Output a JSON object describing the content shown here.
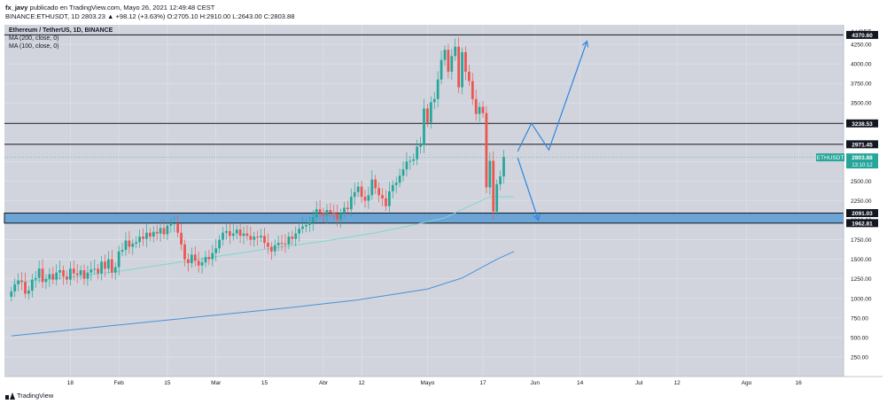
{
  "header": {
    "author": "fx_javy",
    "published_text": "publicado en TradingView.com, Mayo 26, 2021 12:49:48 CEST",
    "ticker_line": "BINANCE:ETHUSDT, 1D 2803.23 ▲ +98.12 (+3.63%) O:2705.10 H:2910.00 L:2643.00 C:2803.88"
  },
  "legend": {
    "title": "Ethereum / TetherUS, 1D, BINANCE",
    "ma1": "MA (200, close, 0)",
    "ma2": "MA (100, close, 0)"
  },
  "footer": {
    "brand": "TradingView"
  },
  "colors": {
    "background": "#d1d4dc",
    "up": "#26a69a",
    "down": "#ef5350",
    "ma200": "#4a90d9",
    "ma100": "#7fd6cf",
    "zone": "#5b9bd5",
    "projection": "#2f86e0",
    "price_tag": "#26a69a"
  },
  "chart_data": {
    "type": "candlestick",
    "ylim": [
      0,
      4500
    ],
    "y_ticks": [
      250,
      500,
      750,
      1000,
      1250,
      1500,
      1750,
      2000,
      2250,
      2500,
      2750,
      3000,
      3250,
      3500,
      3750,
      4000,
      4250
    ],
    "y_tick_labels": [
      "250.00",
      "500.00",
      "750.00",
      "1000.00",
      "1250.00",
      "1500.00",
      "1750.00",
      "2000.00",
      "2250.00",
      "2500.00",
      "2750.00",
      "3000.00",
      "3250.00",
      "3500.00",
      "3750.00",
      "4000.00",
      "4250.00"
    ],
    "y_unit_label": "USDT",
    "y_unit_value": 4,
    "x_labels": [
      {
        "label": "18",
        "day": 17
      },
      {
        "label": "Feb",
        "day": 31
      },
      {
        "label": "15",
        "day": 45
      },
      {
        "label": "Mar",
        "day": 59
      },
      {
        "label": "15",
        "day": 73
      },
      {
        "label": "Abr",
        "day": 90
      },
      {
        "label": "12",
        "day": 101
      },
      {
        "label": "Mayo",
        "day": 120
      },
      {
        "label": "17",
        "day": 136
      },
      {
        "label": "Jun",
        "day": 151
      },
      {
        "label": "14",
        "day": 164
      },
      {
        "label": "Jul",
        "day": 181
      },
      {
        "label": "12",
        "day": 192
      },
      {
        "label": "Ago",
        "day": 212
      },
      {
        "label": "16",
        "day": 227
      }
    ],
    "candles_close": [
      1090,
      1180,
      1230,
      1210,
      1060,
      1100,
      1240,
      1260,
      1380,
      1210,
      1250,
      1310,
      1240,
      1330,
      1360,
      1280,
      1240,
      1380,
      1320,
      1300,
      1360,
      1250,
      1330,
      1370,
      1380,
      1320,
      1470,
      1380,
      1500,
      1330,
      1400,
      1600,
      1620,
      1740,
      1660,
      1700,
      1720,
      1790,
      1760,
      1840,
      1790,
      1850,
      1830,
      1900,
      1820,
      1930,
      1950,
      1960,
      1840,
      1690,
      1500,
      1450,
      1560,
      1480,
      1420,
      1460,
      1530,
      1500,
      1580,
      1640,
      1750,
      1840,
      1860,
      1800,
      1830,
      1880,
      1800,
      1830,
      1800,
      1750,
      1790,
      1780,
      1800,
      1710,
      1660,
      1600,
      1680,
      1710,
      1700,
      1690,
      1790,
      1760,
      1830,
      1890,
      1920,
      1940,
      1970,
      2040,
      2140,
      2100,
      2060,
      2130,
      2100,
      2080,
      2010,
      2090,
      2160,
      2140,
      2300,
      2360,
      2430,
      2300,
      2250,
      2320,
      2520,
      2410,
      2320,
      2280,
      2180,
      2370,
      2450,
      2480,
      2570,
      2650,
      2750,
      2760,
      2780,
      2940,
      2960,
      3430,
      3250,
      3510,
      3550,
      3800,
      4050,
      4180,
      3900,
      4100,
      4220,
      3700,
      4150,
      3900,
      3780,
      3550,
      3360,
      3450,
      3370,
      2420,
      2760,
      2110,
      2460,
      2560,
      2810
    ],
    "candles_open_prefix": 1020,
    "candle_ranges": {
      "wick": 60
    },
    "ma200_points": [
      [
        0,
        520
      ],
      [
        20,
        610
      ],
      [
        40,
        700
      ],
      [
        60,
        790
      ],
      [
        80,
        880
      ],
      [
        100,
        980
      ],
      [
        120,
        1120
      ],
      [
        130,
        1260
      ],
      [
        140,
        1500
      ],
      [
        145,
        1600
      ]
    ],
    "ma100_points": [
      [
        0,
        1200
      ],
      [
        15,
        1260
      ],
      [
        30,
        1340
      ],
      [
        45,
        1440
      ],
      [
        60,
        1540
      ],
      [
        75,
        1640
      ],
      [
        90,
        1730
      ],
      [
        105,
        1840
      ],
      [
        115,
        1930
      ],
      [
        125,
        2030
      ],
      [
        133,
        2200
      ],
      [
        138,
        2300
      ],
      [
        145,
        2300
      ]
    ],
    "horizontal_levels": [
      {
        "value": 4370.6,
        "label": "4370.60"
      },
      {
        "value": 3238.53,
        "label": "3238.53"
      },
      {
        "value": 2971.45,
        "label": "2971.45"
      }
    ],
    "support_zone": {
      "top": 2091.03,
      "bottom": 1962.81,
      "top_label": "2091.03",
      "bottom_label": "1962.81"
    },
    "current_price": {
      "value": 2803.88,
      "label": "2803.88",
      "symbol": "ETHUSDT",
      "countdown": "13:10:12"
    },
    "projection_up": [
      [
        146,
        2880
      ],
      [
        150,
        3240
      ],
      [
        155,
        2900
      ],
      [
        166,
        4290
      ]
    ],
    "projection_down": [
      [
        146,
        2800
      ],
      [
        152,
        2000
      ]
    ],
    "x_range": [
      -2,
      240
    ]
  }
}
